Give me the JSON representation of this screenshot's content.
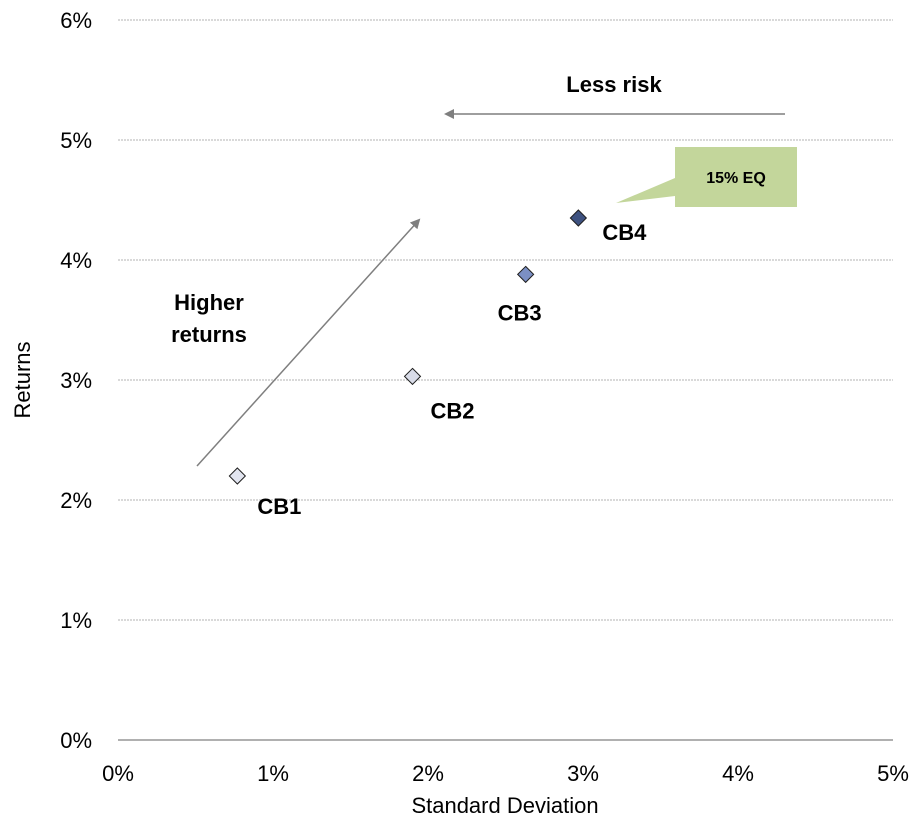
{
  "chart_data": {
    "type": "scatter",
    "title": "",
    "xlabel": "Standard Deviation",
    "ylabel": "Returns",
    "xlim": [
      0,
      5
    ],
    "ylim": [
      0,
      6
    ],
    "x_ticks": [
      "0%",
      "1%",
      "2%",
      "3%",
      "4%",
      "5%"
    ],
    "y_ticks": [
      "0%",
      "1%",
      "2%",
      "3%",
      "4%",
      "5%",
      "6%"
    ],
    "grid": "horizontal",
    "points": [
      {
        "label": "CB1",
        "x": 0.77,
        "y": 2.2,
        "color": "#e2e5f0"
      },
      {
        "label": "CB2",
        "x": 1.9,
        "y": 3.03,
        "color": "#d9dce8"
      },
      {
        "label": "CB3",
        "x": 2.63,
        "y": 3.88,
        "color": "#7b8fc4"
      },
      {
        "label": "CB4",
        "x": 2.97,
        "y": 4.35,
        "color": "#3e5280"
      }
    ],
    "annotations": {
      "less_risk": "Less risk",
      "higher_returns_line1": "Higher",
      "higher_returns_line2": "returns",
      "callout": "15% EQ",
      "callout_color": "#c3d69b"
    }
  }
}
